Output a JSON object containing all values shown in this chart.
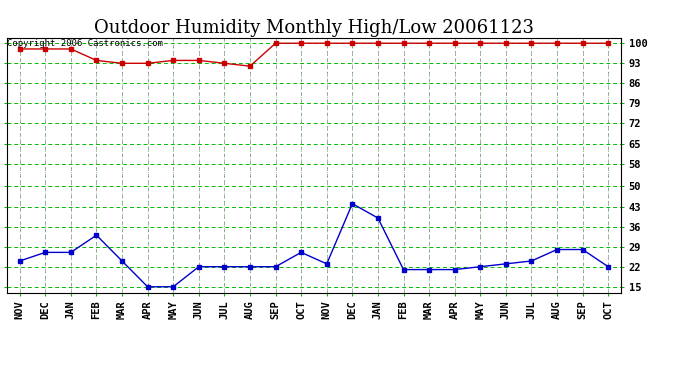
{
  "title": "Outdoor Humidity Monthly High/Low 20061123",
  "copyright": "Copyright 2006 Castronics.com",
  "months": [
    "NOV",
    "DEC",
    "JAN",
    "FEB",
    "MAR",
    "APR",
    "MAY",
    "JUN",
    "JUL",
    "AUG",
    "SEP",
    "OCT",
    "NOV",
    "DEC",
    "JAN",
    "FEB",
    "MAR",
    "APR",
    "MAY",
    "JUN",
    "JUL",
    "AUG",
    "SEP",
    "OCT"
  ],
  "high_values": [
    98,
    98,
    98,
    94,
    93,
    93,
    94,
    94,
    93,
    92,
    100,
    100,
    100,
    100,
    100,
    100,
    100,
    100,
    100,
    100,
    100,
    100,
    100,
    100
  ],
  "low_values": [
    24,
    27,
    27,
    33,
    24,
    15,
    15,
    22,
    22,
    22,
    22,
    27,
    23,
    44,
    39,
    21,
    21,
    21,
    22,
    23,
    24,
    28,
    28,
    22
  ],
  "yticks": [
    15,
    22,
    29,
    36,
    43,
    50,
    58,
    65,
    72,
    79,
    86,
    93,
    100
  ],
  "ymin": 13,
  "ymax": 102,
  "high_color": "#cc0000",
  "low_color": "#0000cc",
  "green_grid_color": "#00bb00",
  "gray_grid_color": "#aaaaaa",
  "bg_color": "#ffffff",
  "plot_bg_color": "#ffffff",
  "border_color": "#000000",
  "title_fontsize": 13,
  "copyright_fontsize": 6.5,
  "tick_fontsize": 7.5
}
